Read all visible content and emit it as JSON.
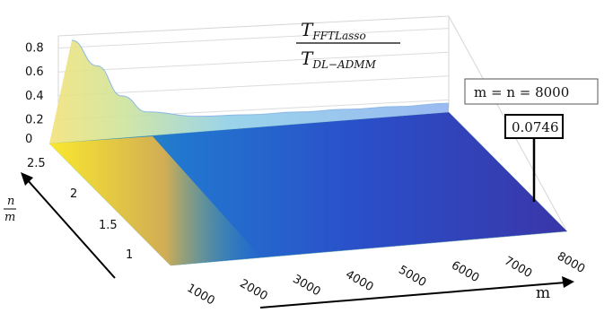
{
  "chart_data": {
    "type": "surface",
    "title_numerator": "T",
    "title_numerator_sub": "FFTLasso",
    "title_denominator": "T",
    "title_denominator_sub": "DL−ADMM",
    "xlabel": "m",
    "ylabel_num": "n",
    "ylabel_den": "m",
    "x_ticks": [
      "1000",
      "2000",
      "3000",
      "4000",
      "5000",
      "6000",
      "7000",
      "8000"
    ],
    "y_ticks": [
      "1",
      "1.5",
      "2",
      "2.5"
    ],
    "z_ticks": [
      "0",
      "0.2",
      "0.4",
      "0.6",
      "0.8"
    ],
    "x_range": [
      500,
      8000
    ],
    "y_range": [
      0.75,
      2.75
    ],
    "z_range": [
      0,
      0.85
    ],
    "colormap": "parula",
    "annotation_label": "m = n = 8000",
    "annotation_value": "0.0746",
    "ratio_curve_along_m": {
      "x": [
        500,
        1000,
        1500,
        2000,
        3000,
        4000,
        5000,
        6000,
        7000,
        8000
      ],
      "z": [
        0.85,
        0.62,
        0.35,
        0.2,
        0.13,
        0.11,
        0.1,
        0.09,
        0.08,
        0.0746
      ]
    }
  }
}
